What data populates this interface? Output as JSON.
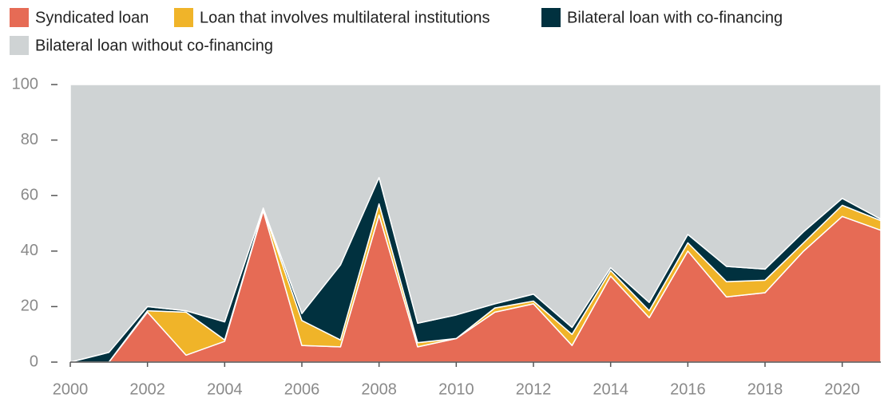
{
  "chart_data": {
    "type": "stacked_area",
    "x": [
      2000,
      2001,
      2002,
      2003,
      2004,
      2005,
      2006,
      2007,
      2008,
      2009,
      2010,
      2011,
      2012,
      2013,
      2014,
      2015,
      2016,
      2017,
      2018,
      2019,
      2020,
      2021
    ],
    "series": [
      {
        "name": "Syndicated loan",
        "color": "#e66b55",
        "values": [
          0,
          0,
          18,
          2.5,
          7.5,
          54.5,
          6,
          5.5,
          53,
          5.5,
          8.5,
          18,
          21,
          6,
          31,
          16,
          40,
          23.5,
          25,
          40,
          52.5,
          47.5
        ]
      },
      {
        "name": "Loan that involves multilateral institutions",
        "color": "#f0b429",
        "values": [
          0,
          0,
          0.5,
          15.5,
          0.5,
          0.5,
          9,
          2.5,
          4,
          1.5,
          0,
          1.5,
          1,
          4,
          2,
          2.5,
          3,
          5.5,
          4.5,
          3,
          4,
          3.5
        ]
      },
      {
        "name": "Bilateral loan with co-financing",
        "color": "#01313f",
        "values": [
          0,
          3.5,
          1.5,
          0.5,
          6.5,
          0.5,
          2.5,
          27,
          9.5,
          7,
          8.5,
          1.5,
          2.5,
          2.5,
          1,
          3,
          3,
          5.5,
          4,
          4,
          2.5,
          0.5
        ]
      },
      {
        "name": "Bilateral loan without co-financing",
        "color": "#cfd3d4",
        "values": [
          100,
          96.5,
          80,
          81.5,
          85.5,
          44.5,
          82.5,
          65,
          33.5,
          86,
          83,
          79,
          75.5,
          87.5,
          66,
          78.5,
          54,
          65.5,
          66.5,
          53,
          41,
          48.5
        ]
      }
    ],
    "xlim": [
      2000,
      2021
    ],
    "xticks": [
      2000,
      2002,
      2004,
      2006,
      2008,
      2010,
      2012,
      2014,
      2016,
      2018,
      2020
    ],
    "ylim": [
      0,
      100
    ],
    "yticks": [
      0,
      20,
      40,
      60,
      80,
      100
    ]
  }
}
